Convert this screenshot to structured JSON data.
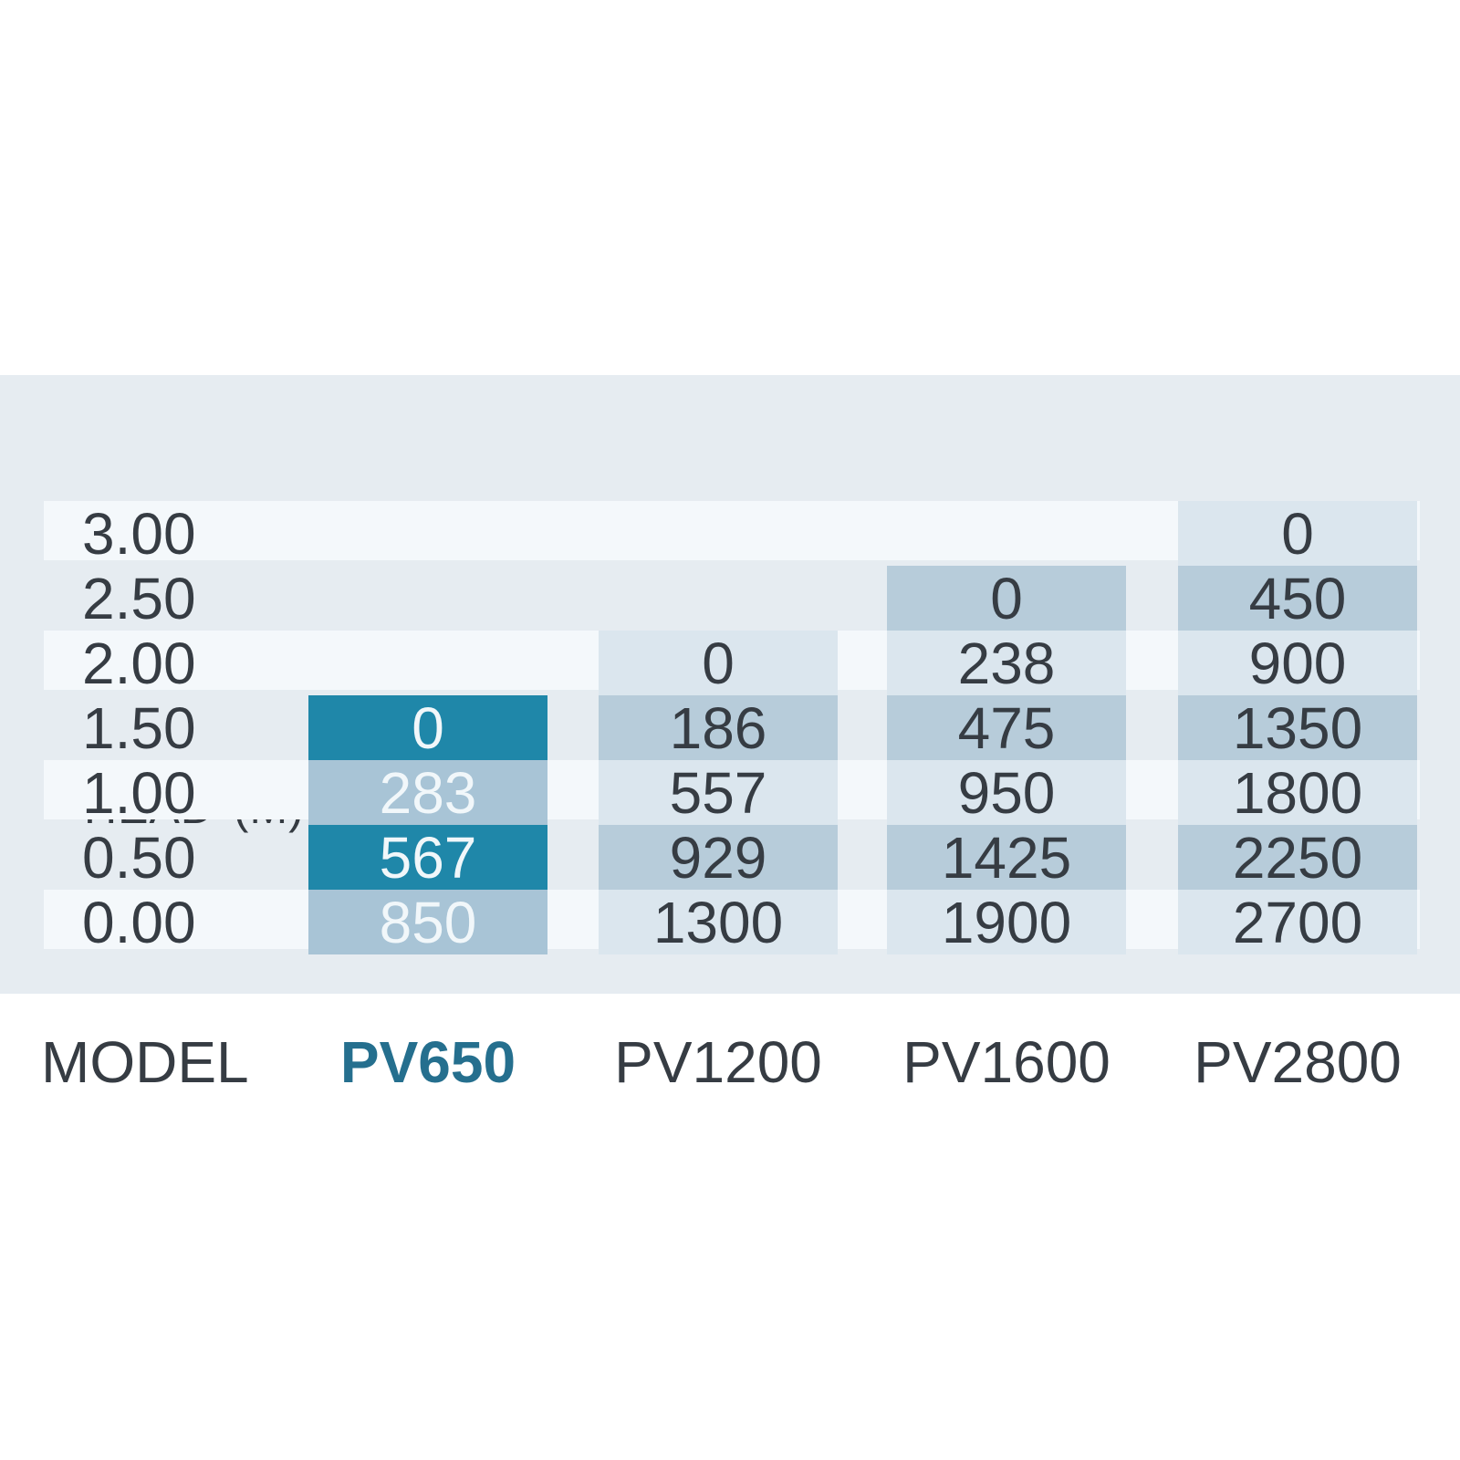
{
  "header": {
    "title": "HEAD (M)"
  },
  "footer": {
    "label": "MODEL"
  },
  "table": {
    "head_title": "HEAD (M)",
    "row_labels": [
      "3.00",
      "2.50",
      "2.00",
      "1.50",
      "1.00",
      "0.50",
      "0.00"
    ],
    "columns": [
      {
        "model": "PV650",
        "start_row": 3,
        "accent": true,
        "values": [
          "0",
          "283",
          "567",
          "850"
        ]
      },
      {
        "model": "PV1200",
        "start_row": 2,
        "accent": false,
        "values": [
          "0",
          "186",
          "557",
          "929",
          "1300"
        ]
      },
      {
        "model": "PV1600",
        "start_row": 1,
        "accent": false,
        "values": [
          "0",
          "238",
          "475",
          "950",
          "1425",
          "1900"
        ]
      },
      {
        "model": "PV2800",
        "start_row": 0,
        "accent": false,
        "values": [
          "0",
          "450",
          "900",
          "1350",
          "1800",
          "2250",
          "2700"
        ]
      }
    ]
  },
  "chart_data": {
    "type": "table",
    "title": "HEAD (M)",
    "row_axis_label": "HEAD (M)",
    "column_axis_label": "MODEL",
    "head_m": [
      3.0,
      2.5,
      2.0,
      1.5,
      1.0,
      0.5,
      0.0
    ],
    "series": [
      {
        "name": "PV650",
        "flow_by_head": [
          null,
          null,
          null,
          0,
          283,
          567,
          850
        ]
      },
      {
        "name": "PV1200",
        "flow_by_head": [
          null,
          null,
          0,
          186,
          557,
          929,
          1300
        ]
      },
      {
        "name": "PV1600",
        "flow_by_head": [
          null,
          0,
          238,
          475,
          950,
          1425,
          1900
        ]
      },
      {
        "name": "PV2800",
        "flow_by_head": [
          0,
          450,
          900,
          1350,
          1800,
          2250,
          2700
        ]
      }
    ],
    "highlighted_series": "PV650"
  },
  "colors": {
    "page_bg": "#ffffff",
    "panel": "#e6ecf1",
    "light_row": "#f4f8fb",
    "cell_light": "#dbe6ee",
    "cell_dark": "#b7ccda",
    "accent_teal": "#1f87a9",
    "accent_teal_soft": "#a8c4d6",
    "text_dark": "#363c43",
    "text_on_accent": "#f1f7fa",
    "model_accent": "#256f8e",
    "head_text": "#343a41"
  }
}
